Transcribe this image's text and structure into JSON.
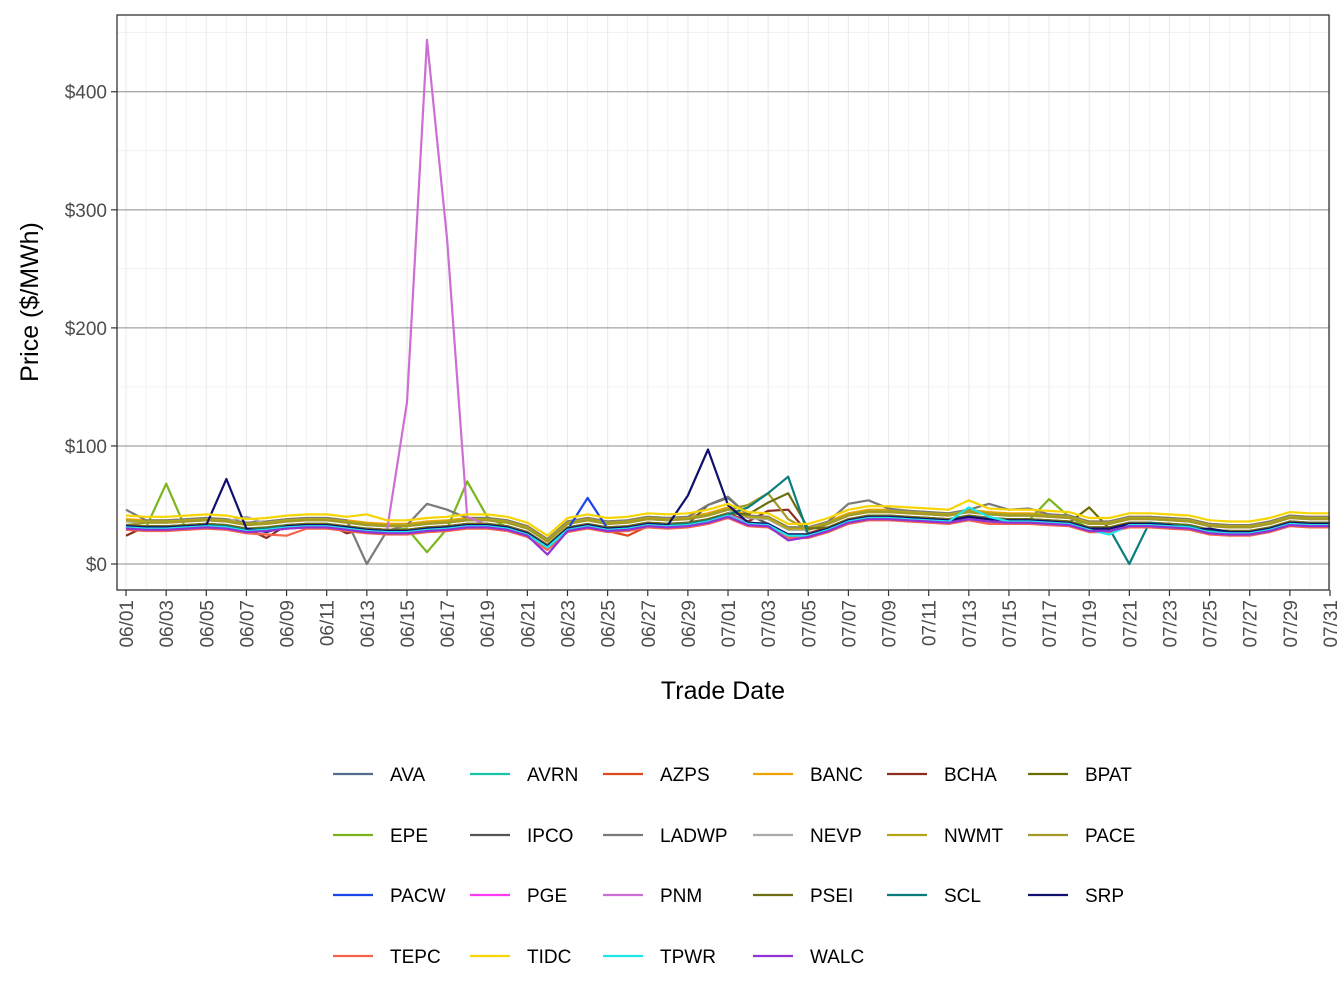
{
  "chart_data": {
    "type": "line",
    "xlabel": "Trade Date",
    "ylabel": "Price ($/MWh)",
    "ylim": [
      -22,
      465
    ],
    "grid": true,
    "legend_position": "bottom",
    "y_ticks": [
      0,
      100,
      200,
      300,
      400
    ],
    "y_tick_labels": [
      "$0",
      "$100",
      "$200",
      "$300",
      "$400"
    ],
    "x": [
      "06/01",
      "06/02",
      "06/03",
      "06/04",
      "06/05",
      "06/06",
      "06/07",
      "06/08",
      "06/09",
      "06/10",
      "06/11",
      "06/12",
      "06/13",
      "06/14",
      "06/15",
      "06/16",
      "06/17",
      "06/18",
      "06/19",
      "06/20",
      "06/21",
      "06/22",
      "06/23",
      "06/24",
      "06/25",
      "06/26",
      "06/27",
      "06/28",
      "06/29",
      "06/30",
      "07/01",
      "07/02",
      "07/03",
      "07/04",
      "07/05",
      "07/06",
      "07/07",
      "07/08",
      "07/09",
      "07/10",
      "07/11",
      "07/12",
      "07/13",
      "07/14",
      "07/15",
      "07/16",
      "07/17",
      "07/18",
      "07/19",
      "07/20",
      "07/21",
      "07/22",
      "07/23",
      "07/24",
      "07/25",
      "07/26",
      "07/27",
      "07/28",
      "07/29",
      "07/30",
      "07/31"
    ],
    "x_tick_labels": [
      "06/01",
      "06/03",
      "06/05",
      "06/07",
      "06/09",
      "06/11",
      "06/13",
      "06/15",
      "06/17",
      "06/19",
      "06/21",
      "06/23",
      "06/25",
      "06/27",
      "06/29",
      "07/01",
      "07/03",
      "07/05",
      "07/07",
      "07/09",
      "07/11",
      "07/13",
      "07/15",
      "07/17",
      "07/19",
      "07/21",
      "07/23",
      "07/25",
      "07/27",
      "07/29",
      "07/31"
    ],
    "base_curve": [
      32,
      31,
      31,
      32,
      33,
      32,
      29,
      30,
      32,
      33,
      33,
      31,
      29,
      28,
      28,
      30,
      31,
      33,
      33,
      31,
      26,
      15,
      30,
      33,
      30,
      31,
      34,
      33,
      34,
      37,
      42,
      35,
      34,
      25,
      25,
      30,
      37,
      40,
      40,
      39,
      38,
      37,
      40,
      38,
      37,
      37,
      36,
      35,
      30,
      30,
      34,
      34,
      33,
      32,
      28,
      27,
      27,
      30,
      35,
      34,
      34
    ],
    "series": [
      {
        "name": "AVA",
        "color": "#506c8a",
        "offset": -1,
        "overrides": {}
      },
      {
        "name": "AVRN",
        "color": "#17c4a5",
        "offset": 0,
        "overrides": {}
      },
      {
        "name": "AZPS",
        "color": "#e0491e",
        "offset": -2,
        "overrides": {
          "6": 27,
          "25": 24
        }
      },
      {
        "name": "BANC",
        "color": "#f0a200",
        "offset": 6,
        "overrides": {}
      },
      {
        "name": "BCHA",
        "color": "#8b2e1f",
        "offset": 1,
        "overrides": {
          "0": 24,
          "7": 22,
          "11": 26,
          "32": 45,
          "33": 46
        }
      },
      {
        "name": "BPAT",
        "color": "#6b6b00",
        "offset": 0,
        "overrides": {
          "48": 48
        }
      },
      {
        "name": "EPE",
        "color": "#7ab51d",
        "offset": 0,
        "overrides": {
          "2": 68,
          "3": 29,
          "14": 30,
          "15": 10,
          "16": 30,
          "17": 70,
          "18": 40,
          "46": 55,
          "47": 40
        }
      },
      {
        "name": "IPCO",
        "color": "#555555",
        "offset": 0,
        "overrides": {
          "29": 50,
          "30": 56,
          "31": 42
        }
      },
      {
        "name": "LADWP",
        "color": "#7a7a7a",
        "offset": 6,
        "overrides": {
          "0": 46,
          "12": 0,
          "13": 28,
          "14": 33,
          "15": 51,
          "16": 46,
          "29": 50,
          "30": 57,
          "36": 51,
          "37": 54,
          "38": 47,
          "42": 46,
          "43": 51,
          "44": 46,
          "45": 47
        }
      },
      {
        "name": "NEVP",
        "color": "#aaaaaa",
        "offset": 4,
        "overrides": {
          "6": 40
        }
      },
      {
        "name": "NWMT",
        "color": "#b3a718",
        "offset": 5,
        "overrides": {}
      },
      {
        "name": "PACE",
        "color": "#a39a25",
        "offset": 4,
        "overrides": {
          "0": 33,
          "31": 50,
          "32": 60,
          "33": 38
        }
      },
      {
        "name": "PACW",
        "color": "#1a46e8",
        "offset": -1,
        "overrides": {
          "23": 56,
          "24": 30
        }
      },
      {
        "name": "PGE",
        "color": "#ff3cf5",
        "offset": -1,
        "overrides": {}
      },
      {
        "name": "PNM",
        "color": "#cc6ed2",
        "offset": 0,
        "overrides": {
          "14": 137,
          "15": 444,
          "16": 275,
          "17": 40
        }
      },
      {
        "name": "PSEI",
        "color": "#6e6e12",
        "offset": 1,
        "overrides": {
          "31": 42,
          "32": 52,
          "33": 60,
          "34": 30
        }
      },
      {
        "name": "SCL",
        "color": "#0a7c7c",
        "offset": 0,
        "overrides": {
          "31": 48,
          "32": 60,
          "33": 74,
          "34": 25,
          "50": 0,
          "51": 35
        }
      },
      {
        "name": "SRP",
        "color": "#10116e",
        "offset": 0,
        "overrides": {
          "4": 33,
          "5": 72,
          "6": 30,
          "7": 27,
          "28": 58,
          "29": 97,
          "30": 50,
          "53": 29,
          "54": 30
        }
      },
      {
        "name": "TEPC",
        "color": "#f5644b",
        "offset": -3,
        "overrides": {
          "7": 25,
          "8": 24,
          "43": 34,
          "44": 34
        }
      },
      {
        "name": "TIDC",
        "color": "#f7d500",
        "offset": 9,
        "overrides": {
          "12": 42,
          "42": 54
        }
      },
      {
        "name": "TPWR",
        "color": "#1ee6ec",
        "offset": -1,
        "overrides": {
          "42": 48,
          "43": 40,
          "49": 25
        }
      },
      {
        "name": "WALC",
        "color": "#8f33d6",
        "offset": -2,
        "overrides": {
          "21": 8,
          "33": 20
        }
      }
    ]
  }
}
